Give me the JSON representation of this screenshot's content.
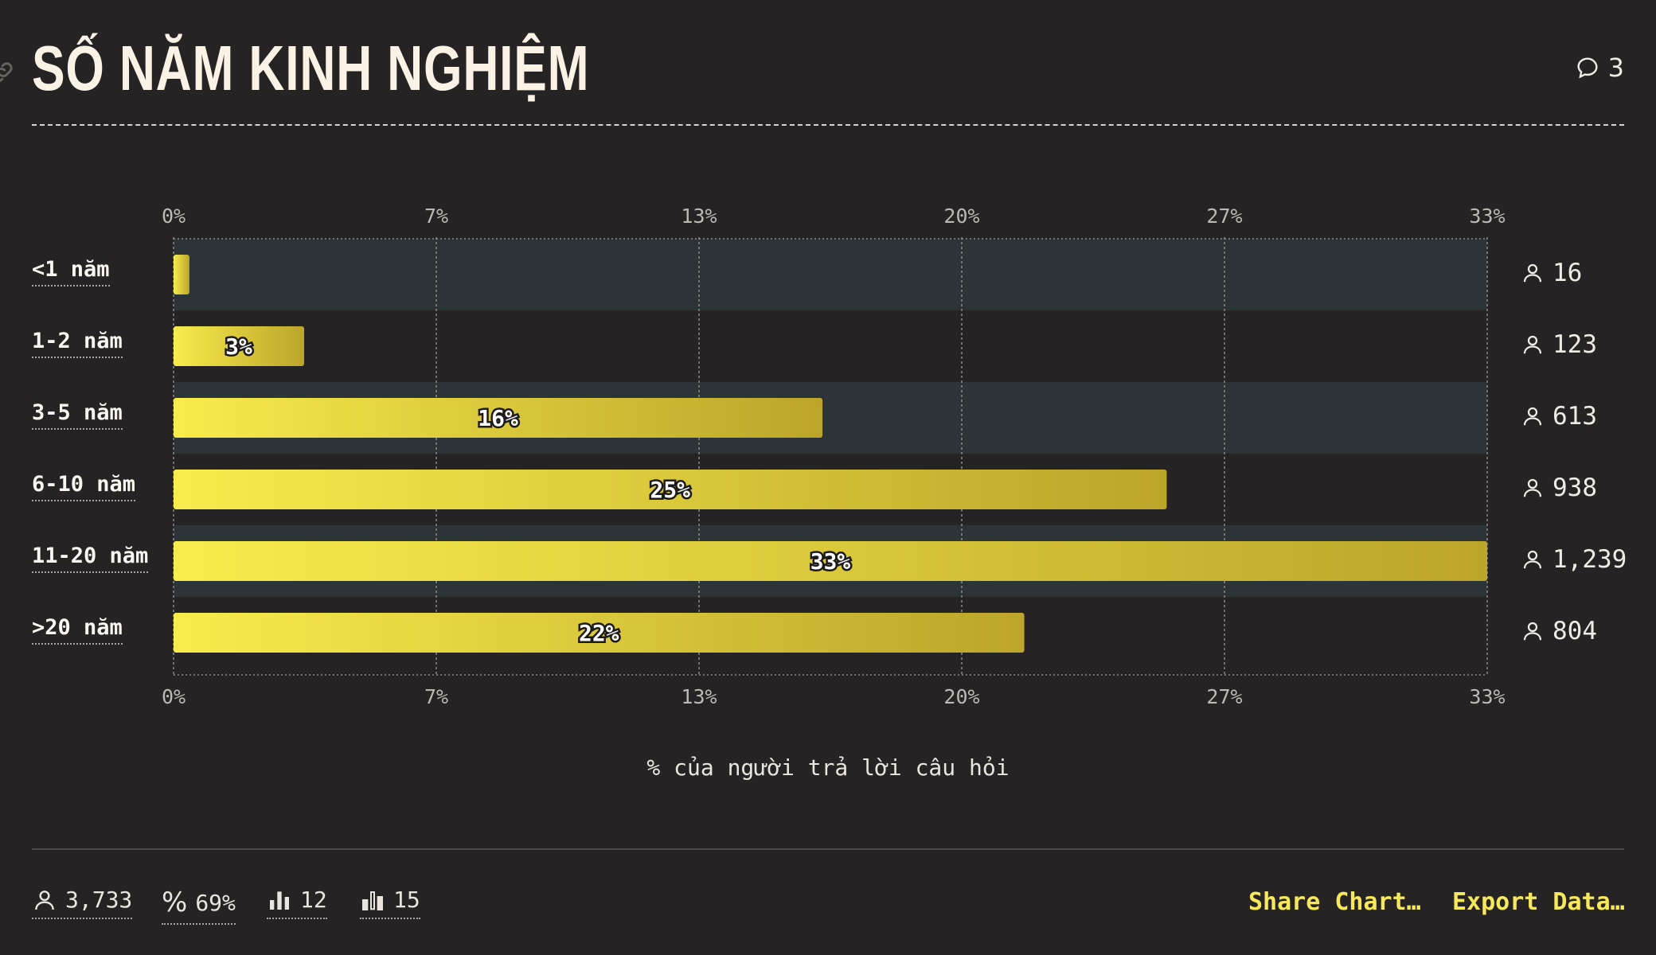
{
  "header": {
    "title": "SỐ NĂM KINH NGHIỆM",
    "comment_count": "3"
  },
  "chart_data": {
    "type": "bar",
    "orientation": "horizontal",
    "categories": [
      "<1 năm",
      "1-2 năm",
      "3-5 năm",
      "6-10 năm",
      "11-20 năm",
      ">20 năm"
    ],
    "values": [
      0.4,
      3.3,
      16.4,
      25.1,
      33.2,
      21.5
    ],
    "value_labels": [
      "",
      "3%",
      "16%",
      "25%",
      "33%",
      "22%"
    ],
    "counts": [
      "16",
      "123",
      "613",
      "938",
      "1,239",
      "804"
    ],
    "xlim": [
      0,
      33.2
    ],
    "ticks": [
      0,
      6.64,
      13.28,
      19.92,
      26.56,
      33.2
    ],
    "tick_labels": [
      "0%",
      "7%",
      "13%",
      "20%",
      "27%",
      "33%"
    ],
    "xlabel": "% của người trả lời câu hỏi",
    "grid": true,
    "striped_rows": [
      0,
      2,
      4
    ],
    "colors": {
      "bar_start": "#f8ec4c",
      "bar_end": "#bca52a",
      "stripe": "#2d3438",
      "grid": "#8c8a88",
      "background": "#262324"
    }
  },
  "footer": {
    "stats": {
      "respondents": "3,733",
      "percent": "69%",
      "answered": "12",
      "skipped": "15"
    },
    "actions": {
      "share": "Share Chart…",
      "export": "Export Data…"
    }
  }
}
